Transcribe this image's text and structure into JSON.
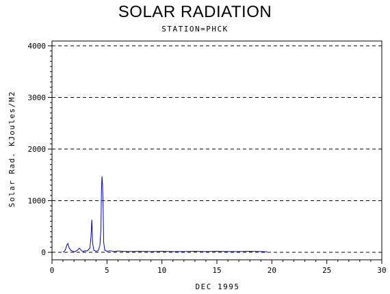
{
  "chart_data": {
    "type": "line",
    "title": "SOLAR RADIATION",
    "subtitle": "STATION=PHCK",
    "xlabel": "DEC 1995",
    "ylabel": "Solar Rad. KJoules/M2",
    "xlim": [
      0,
      30
    ],
    "ylim": [
      0,
      4000
    ],
    "x_ticks": [
      0,
      5,
      10,
      15,
      20,
      25,
      30
    ],
    "y_ticks": [
      0,
      1000,
      2000,
      3000,
      4000
    ],
    "grid": "horizontal dashed",
    "series": [
      {
        "color": "#0000cc",
        "x": [
          1.0,
          1.2,
          1.35,
          1.45,
          1.55,
          1.7,
          1.9,
          2.1,
          2.3,
          2.5,
          2.65,
          2.8,
          3.0,
          3.2,
          3.45,
          3.55,
          3.62,
          3.7,
          3.8,
          4.0,
          4.2,
          4.35,
          4.45,
          4.5,
          4.55,
          4.6,
          4.65,
          4.7,
          4.8,
          5.0,
          5.3,
          5.6,
          6.0,
          6.5,
          7.0,
          8.0,
          9.0,
          10.0,
          11.0,
          12.0,
          13.0,
          14.0,
          15.0,
          16.0,
          17.0,
          18.0,
          19.0,
          19.6
        ],
        "y": [
          0,
          40,
          140,
          170,
          90,
          40,
          20,
          10,
          40,
          80,
          40,
          10,
          30,
          25,
          80,
          300,
          630,
          180,
          40,
          20,
          30,
          120,
          450,
          1200,
          1470,
          1300,
          900,
          200,
          40,
          20,
          30,
          15,
          25,
          20,
          15,
          20,
          15,
          20,
          15,
          15,
          20,
          15,
          20,
          15,
          15,
          20,
          15,
          10
        ]
      }
    ]
  }
}
